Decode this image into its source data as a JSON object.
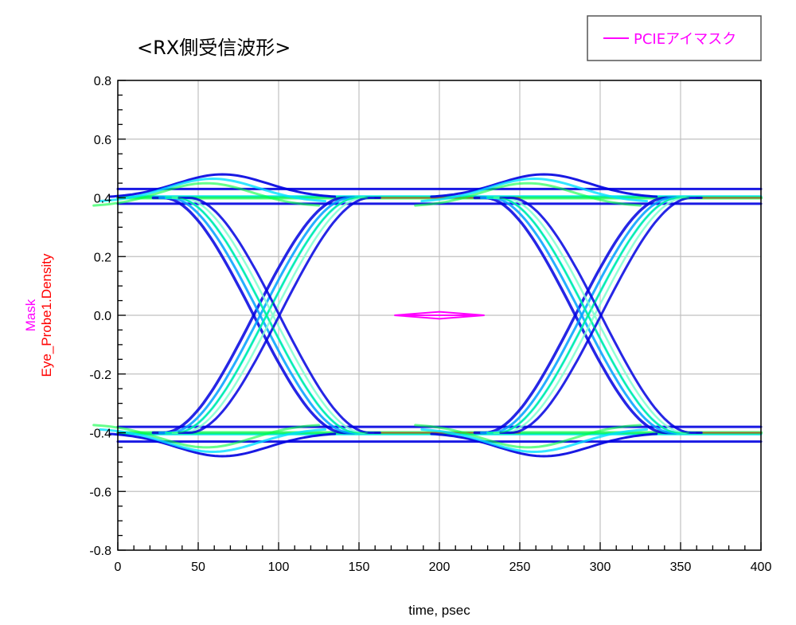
{
  "title": "<RX側受信波形>",
  "legend": {
    "label": "PCIEアイマスク",
    "color": "#ff00ff"
  },
  "chart_data": {
    "type": "scatter",
    "subtype": "eye-diagram-density",
    "xlabel": "time, psec",
    "ylabel_lines": [
      {
        "text": "Mask",
        "color": "#ff00ff"
      },
      {
        "text": "Eye_Probe1.Density",
        "color": "#ff0000"
      }
    ],
    "xlim": [
      0,
      400
    ],
    "ylim": [
      -0.8,
      0.8
    ],
    "xticks": [
      0,
      50,
      100,
      150,
      200,
      250,
      300,
      350,
      400
    ],
    "xtick_labels": [
      "0",
      "50",
      "100",
      "150",
      "200",
      "250",
      "300",
      "350",
      "400"
    ],
    "yticks": [
      0.8,
      0.6,
      0.4,
      0.2,
      0.0,
      -0.2,
      -0.4,
      -0.6,
      -0.8
    ],
    "ytick_labels": [
      "0.8",
      "0.6",
      "0.4",
      "0.2",
      "0.0",
      "-0.2",
      "-0.4",
      "-0.6",
      "-0.8"
    ],
    "grid": true,
    "unit_interval_ps": 200,
    "crossings_ps": [
      100,
      300
    ],
    "levels": {
      "high": 0.4,
      "low": -0.4,
      "overshoot": 0.48,
      "high_band": [
        0.38,
        0.43
      ],
      "low_band": [
        -0.43,
        -0.38
      ]
    },
    "mask": {
      "name": "Mask",
      "points": [
        [
          172,
          0.0
        ],
        [
          200,
          0.012
        ],
        [
          228,
          0.0
        ],
        [
          200,
          -0.012
        ],
        [
          172,
          0.0
        ]
      ]
    },
    "density_colors": [
      "#0000e0",
      "#00a0ff",
      "#00e0ff",
      "#7fffd0",
      "#00ff40",
      "#ffff00",
      "#ff0000"
    ]
  }
}
